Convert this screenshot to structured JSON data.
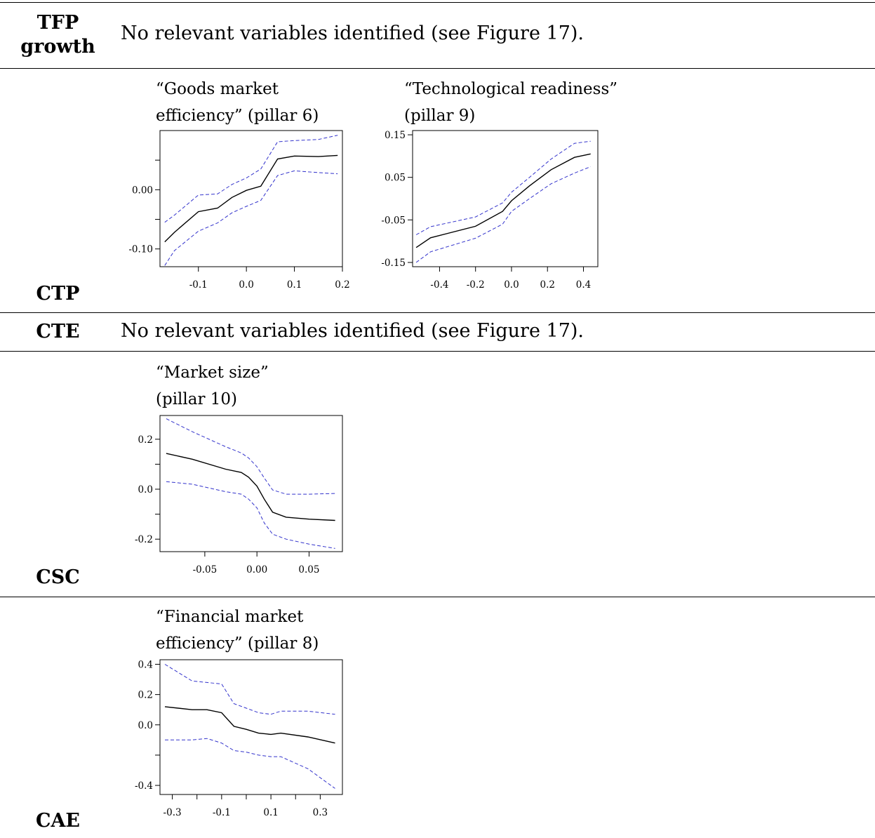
{
  "rows": [
    {
      "label": "TFP\ngrowth",
      "note": "No relevant variables identified (see Figure 17)."
    },
    {
      "label": "CTP"
    },
    {
      "label": "CTE",
      "note": "No relevant variables identified (see Figure 17)."
    },
    {
      "label": "CSC"
    },
    {
      "label": "CAE"
    }
  ],
  "chart_data": [
    {
      "type": "line",
      "title": "“Goods market\nefficiency” (pillar 6)",
      "xlim": [
        -0.18,
        0.2
      ],
      "ylim": [
        -0.13,
        0.1
      ],
      "xticks": [
        -0.1,
        0.0,
        0.1,
        0.2
      ],
      "xtick_labels": [
        "-0.1",
        "0.0",
        "0.1",
        "0.2"
      ],
      "yticks": [
        -0.1,
        -0.05,
        0.0,
        0.05
      ],
      "ytick_labels": [
        "-0.10",
        "",
        "0.00",
        ""
      ],
      "series": [
        {
          "role": "estimate",
          "color": "#000000",
          "dashed": false,
          "x": [
            -0.17,
            -0.15,
            -0.1,
            -0.06,
            -0.03,
            0.0,
            0.03,
            0.065,
            0.1,
            0.15,
            0.19
          ],
          "y": [
            -0.088,
            -0.072,
            -0.037,
            -0.031,
            -0.013,
            -0.001,
            0.006,
            0.052,
            0.057,
            0.056,
            0.058
          ]
        },
        {
          "role": "upper",
          "color": "#3333cc",
          "dashed": true,
          "x": [
            -0.17,
            -0.15,
            -0.1,
            -0.06,
            -0.03,
            0.0,
            0.03,
            0.065,
            0.1,
            0.15,
            0.19
          ],
          "y": [
            -0.055,
            -0.043,
            -0.009,
            -0.007,
            0.009,
            0.02,
            0.035,
            0.081,
            0.083,
            0.085,
            0.092
          ]
        },
        {
          "role": "lower",
          "color": "#3333cc",
          "dashed": true,
          "x": [
            -0.17,
            -0.15,
            -0.1,
            -0.06,
            -0.03,
            0.0,
            0.03,
            0.065,
            0.1,
            0.15,
            0.19
          ],
          "y": [
            -0.128,
            -0.103,
            -0.07,
            -0.056,
            -0.039,
            -0.028,
            -0.018,
            0.024,
            0.032,
            0.029,
            0.027
          ]
        }
      ]
    },
    {
      "type": "line",
      "title": "“Technological readiness”\n(pillar 9)",
      "xlim": [
        -0.55,
        0.48
      ],
      "ylim": [
        -0.16,
        0.16
      ],
      "xticks": [
        -0.4,
        -0.2,
        0.0,
        0.2,
        0.4
      ],
      "xtick_labels": [
        "-0.4",
        "-0.2",
        "0.0",
        "0.2",
        "0.4"
      ],
      "yticks": [
        -0.15,
        -0.05,
        0.05,
        0.15
      ],
      "ytick_labels": [
        "-0.15",
        "-0.05",
        "0.05",
        "0.15"
      ],
      "series": [
        {
          "role": "estimate",
          "color": "#000000",
          "dashed": false,
          "x": [
            -0.53,
            -0.45,
            -0.2,
            -0.05,
            0.0,
            0.1,
            0.22,
            0.35,
            0.44
          ],
          "y": [
            -0.115,
            -0.092,
            -0.065,
            -0.03,
            -0.005,
            0.03,
            0.068,
            0.097,
            0.105
          ]
        },
        {
          "role": "upper",
          "color": "#3333cc",
          "dashed": true,
          "x": [
            -0.53,
            -0.45,
            -0.2,
            -0.05,
            0.0,
            0.1,
            0.22,
            0.35,
            0.44
          ],
          "y": [
            -0.085,
            -0.066,
            -0.043,
            -0.01,
            0.015,
            0.05,
            0.093,
            0.13,
            0.135
          ]
        },
        {
          "role": "lower",
          "color": "#3333cc",
          "dashed": true,
          "x": [
            -0.53,
            -0.45,
            -0.2,
            -0.05,
            0.0,
            0.1,
            0.22,
            0.35,
            0.44
          ],
          "y": [
            -0.15,
            -0.125,
            -0.093,
            -0.06,
            -0.03,
            0.0,
            0.035,
            0.06,
            0.075
          ]
        }
      ]
    },
    {
      "type": "line",
      "title": "“Market size”\n(pillar 10)",
      "xlim": [
        -0.093,
        0.082
      ],
      "ylim": [
        -0.25,
        0.295
      ],
      "xticks": [
        -0.05,
        0.0,
        0.05
      ],
      "xtick_labels": [
        "-0.05",
        "0.00",
        "0.05"
      ],
      "yticks": [
        -0.2,
        -0.1,
        0.0,
        0.1,
        0.2
      ],
      "ytick_labels": [
        "-0.2",
        "",
        "0.0",
        "",
        "0.2"
      ],
      "series": [
        {
          "role": "estimate",
          "color": "#000000",
          "dashed": false,
          "x": [
            -0.087,
            -0.062,
            -0.03,
            -0.015,
            -0.008,
            0.0,
            0.007,
            0.015,
            0.028,
            0.05,
            0.075
          ],
          "y": [
            0.143,
            0.12,
            0.08,
            0.067,
            0.048,
            0.012,
            -0.04,
            -0.092,
            -0.112,
            -0.12,
            -0.125
          ]
        },
        {
          "role": "upper",
          "color": "#3333cc",
          "dashed": true,
          "x": [
            -0.087,
            -0.062,
            -0.03,
            -0.015,
            -0.008,
            0.0,
            0.007,
            0.015,
            0.028,
            0.05,
            0.075
          ],
          "y": [
            0.282,
            0.23,
            0.17,
            0.145,
            0.125,
            0.09,
            0.045,
            -0.003,
            -0.02,
            -0.02,
            -0.017
          ]
        },
        {
          "role": "lower",
          "color": "#3333cc",
          "dashed": true,
          "x": [
            -0.087,
            -0.062,
            -0.03,
            -0.015,
            -0.008,
            0.0,
            0.007,
            0.015,
            0.028,
            0.05,
            0.075
          ],
          "y": [
            0.03,
            0.02,
            -0.01,
            -0.02,
            -0.04,
            -0.075,
            -0.135,
            -0.18,
            -0.2,
            -0.22,
            -0.237
          ]
        }
      ]
    },
    {
      "type": "line",
      "title": "“Financial market\nefficiency” (pillar 8)",
      "xlim": [
        -0.35,
        0.39
      ],
      "ylim": [
        -0.46,
        0.43
      ],
      "xticks": [
        -0.3,
        -0.2,
        -0.1,
        0.0,
        0.1,
        0.2,
        0.3
      ],
      "xtick_labels": [
        "-0.3",
        "",
        "-0.1",
        "",
        "0.1",
        "",
        "0.3"
      ],
      "yticks": [
        -0.4,
        -0.2,
        0.0,
        0.2,
        0.4
      ],
      "ytick_labels": [
        "-0.4",
        "",
        "0.0",
        "0.2",
        "0.4"
      ],
      "series": [
        {
          "role": "estimate",
          "color": "#000000",
          "dashed": false,
          "x": [
            -0.33,
            -0.22,
            -0.16,
            -0.1,
            -0.05,
            0.0,
            0.05,
            0.1,
            0.14,
            0.25,
            0.36
          ],
          "y": [
            0.12,
            0.1,
            0.1,
            0.08,
            -0.01,
            -0.03,
            -0.055,
            -0.063,
            -0.055,
            -0.08,
            -0.12
          ]
        },
        {
          "role": "upper",
          "color": "#3333cc",
          "dashed": true,
          "x": [
            -0.33,
            -0.22,
            -0.16,
            -0.1,
            -0.05,
            0.0,
            0.05,
            0.1,
            0.14,
            0.25,
            0.36
          ],
          "y": [
            0.4,
            0.29,
            0.28,
            0.27,
            0.14,
            0.11,
            0.08,
            0.07,
            0.09,
            0.09,
            0.07
          ]
        },
        {
          "role": "lower",
          "color": "#3333cc",
          "dashed": true,
          "x": [
            -0.33,
            -0.22,
            -0.16,
            -0.1,
            -0.05,
            0.0,
            0.05,
            0.1,
            0.14,
            0.25,
            0.36
          ],
          "y": [
            -0.1,
            -0.1,
            -0.09,
            -0.12,
            -0.17,
            -0.18,
            -0.2,
            -0.21,
            -0.21,
            -0.29,
            -0.42
          ]
        }
      ]
    }
  ]
}
